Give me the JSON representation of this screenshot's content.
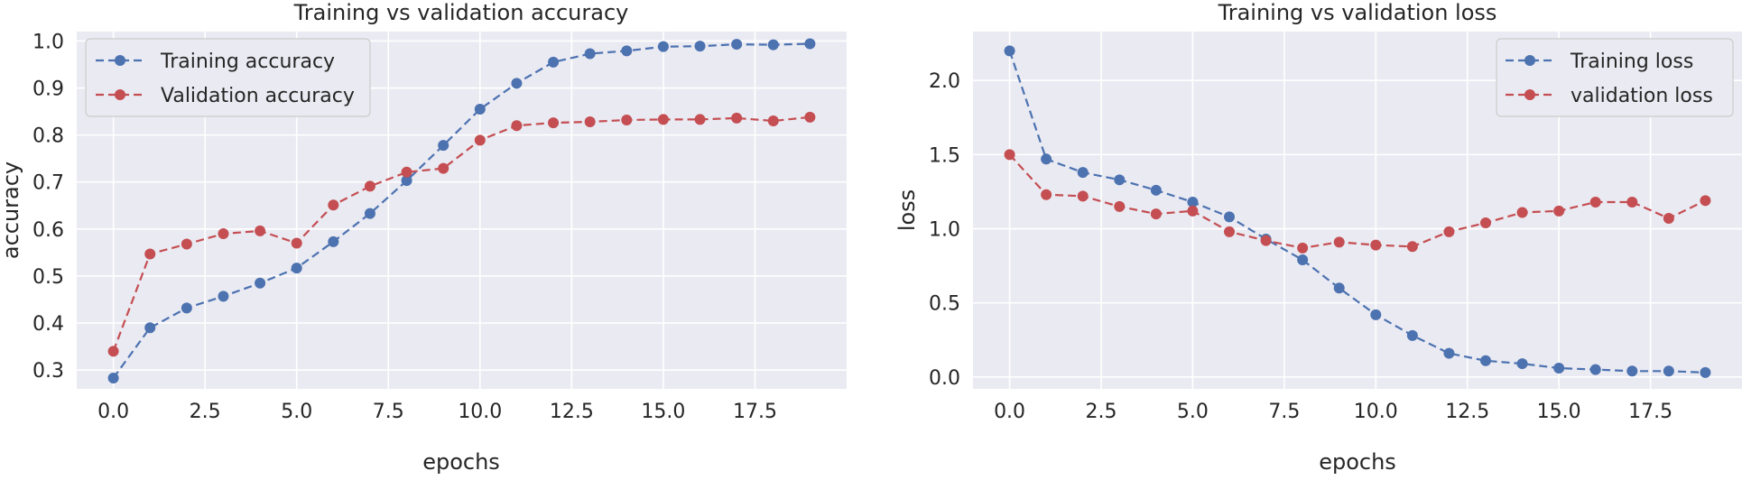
{
  "chart_data": [
    {
      "type": "line",
      "title": "Training vs validation accuracy",
      "xlabel": "epochs",
      "ylabel": "accuracy",
      "xlim": [
        -1.0,
        20.0
      ],
      "ylim": [
        0.26,
        1.02
      ],
      "xticks": [
        0.0,
        2.5,
        5.0,
        7.5,
        10.0,
        12.5,
        15.0,
        17.5
      ],
      "xtick_labels": [
        "0.0",
        "2.5",
        "5.0",
        "7.5",
        "10.0",
        "12.5",
        "15.0",
        "17.5"
      ],
      "yticks": [
        0.3,
        0.4,
        0.5,
        0.6,
        0.7,
        0.8,
        0.9,
        1.0
      ],
      "ytick_labels": [
        "0.3",
        "0.4",
        "0.5",
        "0.6",
        "0.7",
        "0.8",
        "0.9",
        "1.0"
      ],
      "grid": true,
      "legend_position": "upper-left",
      "x": [
        0,
        1,
        2,
        3,
        4,
        5,
        6,
        7,
        8,
        9,
        10,
        11,
        12,
        13,
        14,
        15,
        16,
        17,
        18,
        19
      ],
      "series": [
        {
          "name": "Training accuracy",
          "color": "#4c72b0",
          "style": "dashed",
          "marker": "circle",
          "values": [
            0.283,
            0.39,
            0.432,
            0.457,
            0.485,
            0.517,
            0.573,
            0.633,
            0.703,
            0.778,
            0.855,
            0.91,
            0.955,
            0.973,
            0.979,
            0.988,
            0.989,
            0.993,
            0.992,
            0.994
          ]
        },
        {
          "name": "Validation accuracy",
          "color": "#c44e52",
          "style": "dashed",
          "marker": "circle",
          "values": [
            0.34,
            0.547,
            0.568,
            0.59,
            0.596,
            0.57,
            0.651,
            0.691,
            0.721,
            0.729,
            0.789,
            0.82,
            0.826,
            0.828,
            0.832,
            0.833,
            0.833,
            0.836,
            0.83,
            0.838
          ]
        }
      ]
    },
    {
      "type": "line",
      "title": "Training vs validation loss",
      "xlabel": "epochs",
      "ylabel": "loss",
      "xlim": [
        -1.0,
        20.0
      ],
      "ylim": [
        -0.08,
        2.33
      ],
      "xticks": [
        0.0,
        2.5,
        5.0,
        7.5,
        10.0,
        12.5,
        15.0,
        17.5
      ],
      "xtick_labels": [
        "0.0",
        "2.5",
        "5.0",
        "7.5",
        "10.0",
        "12.5",
        "15.0",
        "17.5"
      ],
      "yticks": [
        0.0,
        0.5,
        1.0,
        1.5,
        2.0
      ],
      "ytick_labels": [
        "0.0",
        "0.5",
        "1.0",
        "1.5",
        "2.0"
      ],
      "grid": true,
      "legend_position": "upper-right",
      "x": [
        0,
        1,
        2,
        3,
        4,
        5,
        6,
        7,
        8,
        9,
        10,
        11,
        12,
        13,
        14,
        15,
        16,
        17,
        18,
        19
      ],
      "series": [
        {
          "name": "Training loss",
          "color": "#4c72b0",
          "style": "dashed",
          "marker": "circle",
          "values": [
            2.2,
            1.47,
            1.38,
            1.33,
            1.26,
            1.18,
            1.08,
            0.93,
            0.79,
            0.6,
            0.42,
            0.28,
            0.16,
            0.11,
            0.09,
            0.06,
            0.05,
            0.04,
            0.04,
            0.03
          ]
        },
        {
          "name": "validation loss",
          "color": "#c44e52",
          "style": "dashed",
          "marker": "circle",
          "values": [
            1.5,
            1.23,
            1.22,
            1.15,
            1.1,
            1.12,
            0.98,
            0.92,
            0.87,
            0.91,
            0.89,
            0.88,
            0.98,
            1.04,
            1.11,
            1.12,
            1.18,
            1.18,
            1.07,
            1.19
          ]
        }
      ]
    }
  ]
}
